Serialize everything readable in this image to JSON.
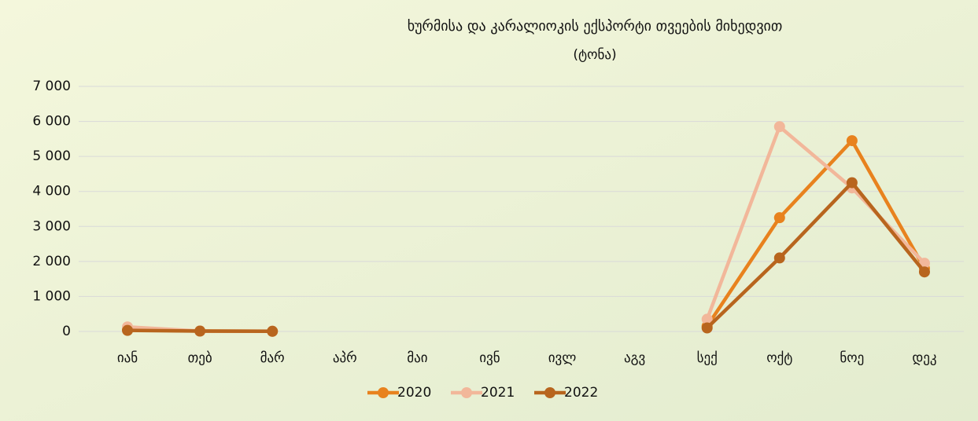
{
  "chart_data": {
    "type": "line",
    "title": "ხურმისა და კარალიოკის ექსპორტი თვეების მიხედვით",
    "subtitle": "(ტონა)",
    "categories": [
      "იან",
      "თებ",
      "მარ",
      "აპრ",
      "მაი",
      "ივნ",
      "ივლ",
      "აგვ",
      "სექ",
      "ოქტ",
      "ნოე",
      "დეკ"
    ],
    "series": [
      {
        "name": "2020",
        "color": "#e8821e",
        "values": [
          50,
          10,
          5,
          null,
          null,
          null,
          null,
          null,
          150,
          3250,
          5450,
          1800
        ]
      },
      {
        "name": "2021",
        "color": "#f2b79a",
        "values": [
          130,
          10,
          5,
          null,
          null,
          null,
          null,
          null,
          350,
          5850,
          4100,
          1950
        ]
      },
      {
        "name": "2022",
        "color": "#b8651e",
        "values": [
          30,
          10,
          5,
          null,
          null,
          null,
          null,
          null,
          100,
          2100,
          4250,
          1700
        ]
      }
    ],
    "ylim": [
      0,
      7000
    ],
    "yticks": [
      0,
      {
        "value": 1000,
        "label": "1 000"
      },
      {
        "value": 2000,
        "label": "2 000"
      },
      {
        "value": 3000,
        "label": "3 000"
      },
      {
        "value": 4000,
        "label": "4 000"
      },
      {
        "value": 5000,
        "label": "5 000"
      },
      {
        "value": 6000,
        "label": "6 000"
      },
      {
        "value": 7000,
        "label": "7 000"
      }
    ],
    "grid": true,
    "legend": "bottom"
  }
}
